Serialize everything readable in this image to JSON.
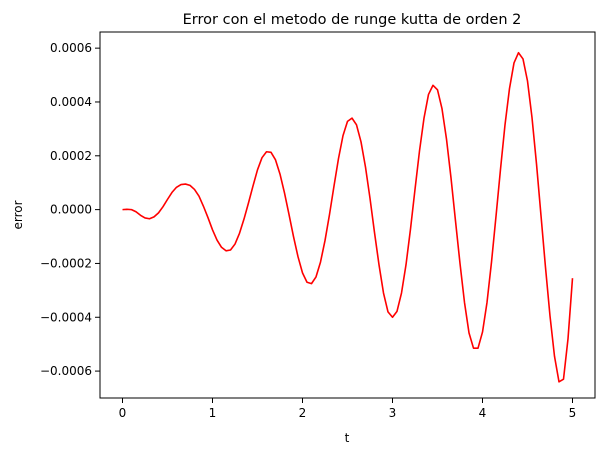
{
  "chart_data": {
    "type": "line",
    "title": "Error con el metodo de runge kutta de orden 2",
    "xlabel": "t",
    "ylabel": "error",
    "xlim": [
      -0.25,
      5.25
    ],
    "ylim": [
      -0.0007,
      0.00066
    ],
    "grid": false,
    "x_ticks": [
      {
        "value": 0,
        "label": "0"
      },
      {
        "value": 1,
        "label": "1"
      },
      {
        "value": 2,
        "label": "2"
      },
      {
        "value": 3,
        "label": "3"
      },
      {
        "value": 4,
        "label": "4"
      },
      {
        "value": 5,
        "label": "5"
      }
    ],
    "y_ticks": [
      {
        "value": 0.0006,
        "label": "0.0006"
      },
      {
        "value": 0.0004,
        "label": "0.0004"
      },
      {
        "value": 0.0002,
        "label": "0.0002"
      },
      {
        "value": 0.0,
        "label": "0.0000"
      },
      {
        "value": -0.0002,
        "label": "−0.0002"
      },
      {
        "value": -0.0004,
        "label": "−0.0004"
      },
      {
        "value": -0.0006,
        "label": "−0.0006"
      }
    ],
    "series": [
      {
        "color": "#ff0000",
        "points": [
          [
            0.0,
            0.0
          ],
          [
            0.05,
            1e-06
          ],
          [
            0.1,
            0.0
          ],
          [
            0.15,
            -8e-06
          ],
          [
            0.2,
            -2.1e-05
          ],
          [
            0.25,
            -3.1e-05
          ],
          [
            0.3,
            -3.4e-05
          ],
          [
            0.35,
            -2.7e-05
          ],
          [
            0.4,
            -1.2e-05
          ],
          [
            0.45,
            1.1e-05
          ],
          [
            0.5,
            3.8e-05
          ],
          [
            0.55,
            6.4e-05
          ],
          [
            0.6,
            8.3e-05
          ],
          [
            0.65,
            9.3e-05
          ],
          [
            0.7,
            9.5e-05
          ],
          [
            0.75,
            9e-05
          ],
          [
            0.8,
            7.5e-05
          ],
          [
            0.85,
            5e-05
          ],
          [
            0.9,
            1.2e-05
          ],
          [
            0.95,
            -3e-05
          ],
          [
            1.0,
            -7.5e-05
          ],
          [
            1.05,
            -0.000113
          ],
          [
            1.1,
            -0.00014
          ],
          [
            1.15,
            -0.000153
          ],
          [
            1.2,
            -0.00015
          ],
          [
            1.25,
            -0.000128
          ],
          [
            1.3,
            -8.8e-05
          ],
          [
            1.35,
            -3.5e-05
          ],
          [
            1.4,
            2.5e-05
          ],
          [
            1.45,
            8.8e-05
          ],
          [
            1.5,
            0.000148
          ],
          [
            1.55,
            0.000193
          ],
          [
            1.6,
            0.000215
          ],
          [
            1.65,
            0.000213
          ],
          [
            1.7,
            0.000185
          ],
          [
            1.75,
            0.000132
          ],
          [
            1.8,
            6.2e-05
          ],
          [
            1.85,
            -1.8e-05
          ],
          [
            1.9,
            -0.0001
          ],
          [
            1.95,
            -0.000175
          ],
          [
            2.0,
            -0.000235
          ],
          [
            2.05,
            -0.00027
          ],
          [
            2.1,
            -0.000275
          ],
          [
            2.15,
            -0.00025
          ],
          [
            2.2,
            -0.000195
          ],
          [
            2.25,
            -0.000115
          ],
          [
            2.3,
            -1.8e-05
          ],
          [
            2.35,
            8.8e-05
          ],
          [
            2.4,
            0.00019
          ],
          [
            2.45,
            0.000275
          ],
          [
            2.5,
            0.000328
          ],
          [
            2.55,
            0.00034
          ],
          [
            2.6,
            0.000315
          ],
          [
            2.65,
            0.000252
          ],
          [
            2.7,
            0.000158
          ],
          [
            2.75,
            4.2e-05
          ],
          [
            2.8,
            -8.5e-05
          ],
          [
            2.85,
            -0.000205
          ],
          [
            2.9,
            -0.00031
          ],
          [
            2.95,
            -0.00038
          ],
          [
            3.0,
            -0.0004
          ],
          [
            3.05,
            -0.000378
          ],
          [
            3.1,
            -0.00031
          ],
          [
            3.15,
            -0.000205
          ],
          [
            3.2,
            -7.2e-05
          ],
          [
            3.25,
            7.5e-05
          ],
          [
            3.3,
            0.000218
          ],
          [
            3.35,
            0.00034
          ],
          [
            3.4,
            0.000428
          ],
          [
            3.45,
            0.000462
          ],
          [
            3.5,
            0.000445
          ],
          [
            3.55,
            0.000375
          ],
          [
            3.6,
            0.000262
          ],
          [
            3.65,
            0.000118
          ],
          [
            3.7,
            -4.2e-05
          ],
          [
            3.75,
            -0.0002
          ],
          [
            3.8,
            -0.000345
          ],
          [
            3.85,
            -0.000458
          ],
          [
            3.9,
            -0.000515
          ],
          [
            3.95,
            -0.000515
          ],
          [
            4.0,
            -0.000455
          ],
          [
            4.05,
            -0.000345
          ],
          [
            4.1,
            -0.000195
          ],
          [
            4.15,
            -2.5e-05
          ],
          [
            4.2,
            0.00015
          ],
          [
            4.25,
            0.000315
          ],
          [
            4.3,
            0.00045
          ],
          [
            4.35,
            0.000545
          ],
          [
            4.4,
            0.000583
          ],
          [
            4.45,
            0.00056
          ],
          [
            4.5,
            0.000478
          ],
          [
            4.55,
            0.000342
          ],
          [
            4.6,
            0.00017
          ],
          [
            4.65,
            -2.2e-05
          ],
          [
            4.7,
            -0.000215
          ],
          [
            4.75,
            -0.000395
          ],
          [
            4.8,
            -0.000545
          ],
          [
            4.85,
            -0.00064
          ],
          [
            4.9,
            -0.00063
          ],
          [
            4.95,
            -0.00048
          ],
          [
            5.0,
            -0.000255
          ]
        ]
      }
    ]
  }
}
